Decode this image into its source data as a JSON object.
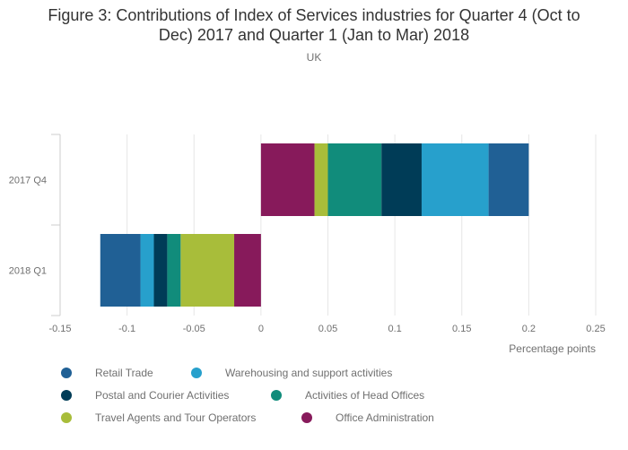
{
  "chart_data": {
    "type": "bar",
    "orientation": "horizontal",
    "stacked": true,
    "title": "Figure 3: Contributions of Index of Services industries for Quarter 4 (Oct to Dec) 2017 and Quarter 1 (Jan to Mar) 2018",
    "title_line1": "Figure 3: Contributions of Index of Services industries for Quarter 4 (Oct to",
    "title_line2": "Dec) 2017 and Quarter 1 (Jan to Mar) 2018",
    "subtitle": "UK",
    "xlabel": "Percentage points",
    "ylabel": "",
    "xlim": [
      -0.15,
      0.25
    ],
    "xticks": [
      -0.15,
      -0.1,
      -0.05,
      0,
      0.05,
      0.1,
      0.15,
      0.2,
      0.25
    ],
    "xtick_labels": [
      "-0.15",
      "-0.1",
      "-0.05",
      "0",
      "0.05",
      "0.1",
      "0.15",
      "0.2",
      "0.25"
    ],
    "categories": [
      "2017 Q4",
      "2018 Q1"
    ],
    "grid": true,
    "legend_position": "bottom",
    "series": [
      {
        "name": "Office Administration",
        "color": "#871A5B",
        "values": [
          0.04,
          -0.02
        ]
      },
      {
        "name": "Travel Agents and Tour Operators",
        "color": "#A8BD3A",
        "values": [
          0.01,
          -0.04
        ]
      },
      {
        "name": "Activities of Head Offices",
        "color": "#118C7B",
        "values": [
          0.04,
          -0.01
        ]
      },
      {
        "name": "Postal and Courier Activities",
        "color": "#003C57",
        "values": [
          0.03,
          -0.01
        ]
      },
      {
        "name": "Warehousing and support activities",
        "color": "#27A0CC",
        "values": [
          0.05,
          -0.01
        ]
      },
      {
        "name": "Retail Trade",
        "color": "#206095",
        "values": [
          0.03,
          -0.03
        ]
      }
    ],
    "legend_order": [
      "Retail Trade",
      "Warehousing and support activities",
      "Postal and Courier Activities",
      "Activities of Head Offices",
      "Travel Agents and Tour Operators",
      "Office Administration"
    ]
  }
}
